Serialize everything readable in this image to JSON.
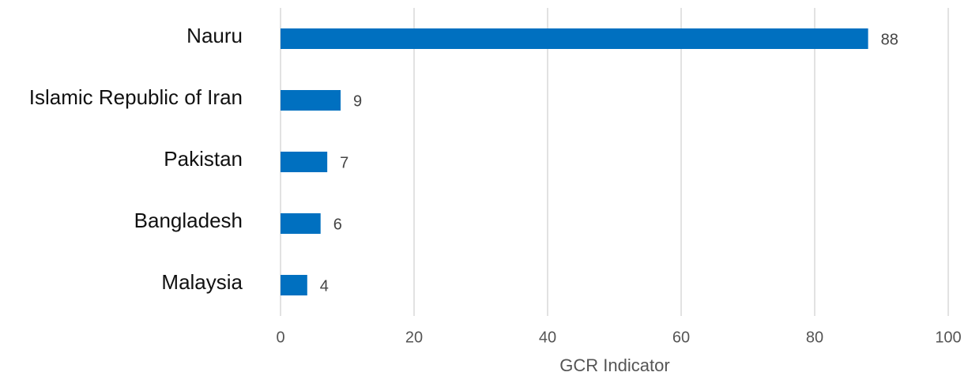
{
  "chart_data": {
    "type": "bar",
    "orientation": "horizontal",
    "categories": [
      "Nauru",
      "Islamic Republic of Iran",
      "Pakistan",
      "Bangladesh",
      "Malaysia"
    ],
    "values": [
      88,
      9,
      7,
      6,
      4
    ],
    "color": "#0070c0",
    "x_label": "GCR Indicator",
    "xlim": [
      0,
      100
    ],
    "xticks": [
      0,
      20,
      40,
      60,
      80,
      100
    ],
    "grid": true
  }
}
